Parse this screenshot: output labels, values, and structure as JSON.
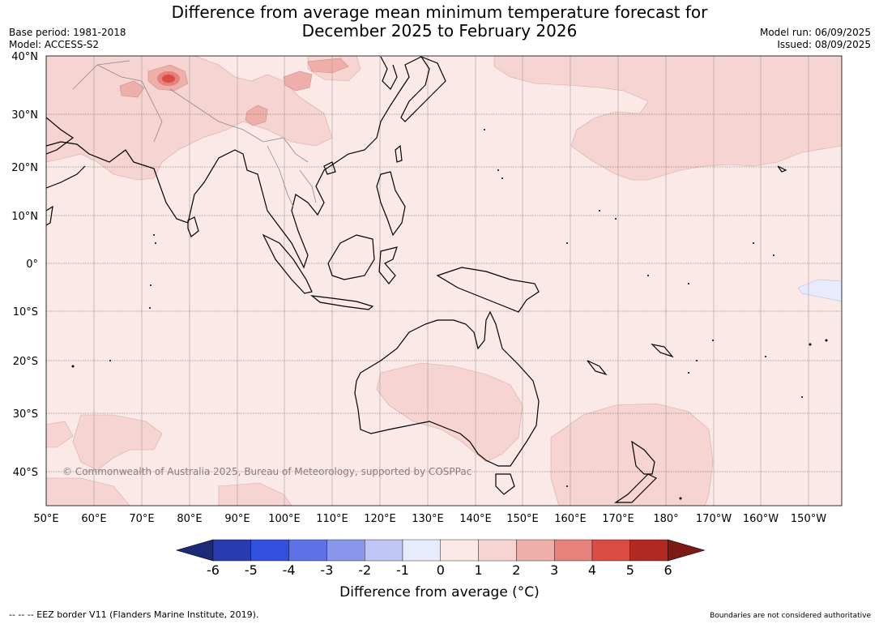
{
  "title_line1": "Difference from average mean minimum temperature forecast for",
  "title_line2": "December 2025 to February 2026",
  "meta_left": {
    "base_period": "Base period: 1981-2018",
    "model": "Model: ACCESS-S2"
  },
  "meta_right": {
    "model_run": "Model run: 06/09/2025",
    "issued": "Issued: 08/09/2025"
  },
  "lat_labels": [
    "40°N",
    "30°N",
    "20°N",
    "10°N",
    "0°",
    "10°S",
    "20°S",
    "30°S",
    "40°S"
  ],
  "lon_labels": [
    "50°E",
    "60°E",
    "70°E",
    "80°E",
    "90°E",
    "100°E",
    "110°E",
    "120°E",
    "130°E",
    "140°E",
    "150°E",
    "160°E",
    "170°E",
    "180°",
    "170°W",
    "160°W",
    "150°W"
  ],
  "copyright": "© Commonwealth of Australia 2025, Bureau of Meteorology, supported by COSPPac",
  "colorbar": {
    "ticks": [
      "-6",
      "-5",
      "-4",
      "-3",
      "-2",
      "-1",
      "0",
      "1",
      "2",
      "3",
      "4",
      "5",
      "6"
    ],
    "colors": [
      "#1c2a78",
      "#2a3bb0",
      "#3150e0",
      "#5e72e6",
      "#8896ec",
      "#c0c6f4",
      "#e8ebfb",
      "#fbe9e8",
      "#f5d4d2",
      "#eeaeaa",
      "#e6817c",
      "#db4c42",
      "#b02a22",
      "#7e1a16"
    ],
    "title": "Difference from average (°C)"
  },
  "footer_left": "--  --  -- EEZ border V11 (Flanders Marine Institute, 2019).",
  "footer_right": "Boundaries are not considered authoritative"
}
